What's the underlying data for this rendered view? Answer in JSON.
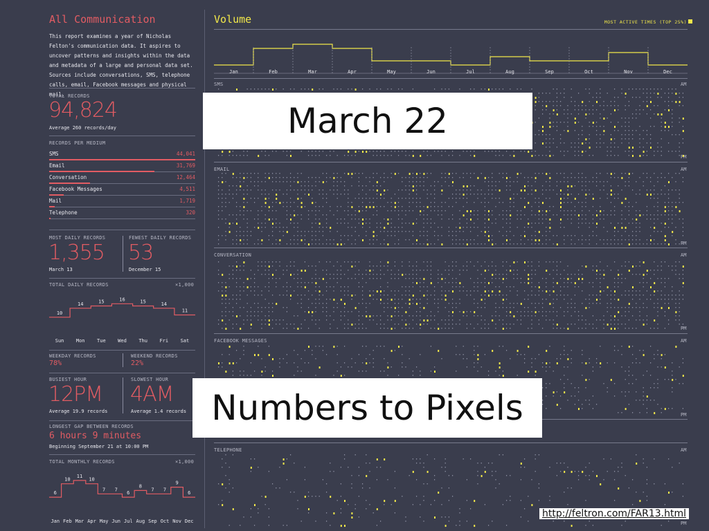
{
  "left": {
    "title": "All Communication",
    "intro": "This report examines a year of Nicholas Felton's communication data. It aspires to uncover patterns and insights within the data and metadata of a large and personal data set. Sources include conversations, SMS, telephone calls, email, Facebook messages and physical mail.",
    "total_label": "TOTAL RECORDS",
    "total_value": "94,824",
    "total_sub": "Average 260 records/day",
    "per_medium_label": "RECORDS PER MEDIUM",
    "mediums": [
      {
        "name": "SMS",
        "value": "44,041",
        "fraction": 1.0
      },
      {
        "name": "Email",
        "value": "31,769",
        "fraction": 0.72
      },
      {
        "name": "Conversation",
        "value": "12,464",
        "fraction": 0.28
      },
      {
        "name": "Facebook Messages",
        "value": "4,511",
        "fraction": 0.1
      },
      {
        "name": "Mail",
        "value": "1,719",
        "fraction": 0.04
      },
      {
        "name": "Telephone",
        "value": "320",
        "fraction": 0.01
      }
    ],
    "most_label": "MOST DAILY RECORDS",
    "most_value": "1,355",
    "most_date": "March 13",
    "fewest_label": "FEWEST DAILY RECORDS",
    "fewest_value": "53",
    "fewest_date": "December 15",
    "daily_label": "TOTAL DAILY RECORDS",
    "daily_unit": "×1,000",
    "weekday_label": "WEEKDAY RECORDS",
    "weekday_value": "78%",
    "weekend_label": "WEEKEND RECORDS",
    "weekend_value": "22%",
    "busiest_label": "BUSIEST HOUR",
    "busiest_value": "12PM",
    "busiest_sub": "Average 19.9 records",
    "slowest_label": "SLOWEST HOUR",
    "slowest_value": "4AM",
    "slowest_sub": "Average 1.4 records",
    "gap_label": "LONGEST GAP BETWEEN RECORDS",
    "gap_value": "6 hours 9 minutes",
    "gap_sub": "Beginning September 21 at 10:00 PM",
    "monthly_label": "TOTAL MONTHLY RECORDS",
    "monthly_unit": "×1,000"
  },
  "right": {
    "title": "Volume",
    "legend": "MOST ACTIVE TIMES (TOP 25%)",
    "sections": [
      "SMS",
      "EMAIL",
      "CONVERSATION",
      "FACEBOOK MESSAGES",
      "TELEPHONE"
    ],
    "am": "AM",
    "pm": "PM"
  },
  "overlays": {
    "date": "March 22",
    "caption": "Numbers to Pixels",
    "url": "http://feltron.com/FAR13.html"
  },
  "colors": {
    "background": "#3a3d4d",
    "accent_red": "#e25c63",
    "accent_yellow": "#f2e84a"
  },
  "chart_data": [
    {
      "type": "line",
      "title": "TOTAL DAILY RECORDS",
      "categories": [
        "Sun",
        "Mon",
        "Tue",
        "Wed",
        "Thu",
        "Fri",
        "Sat"
      ],
      "values": [
        10,
        14,
        15,
        16,
        15,
        14,
        11
      ],
      "unit": "×1,000"
    },
    {
      "type": "line",
      "title": "TOTAL MONTHLY RECORDS",
      "categories": [
        "Jan",
        "Feb",
        "Mar",
        "Apr",
        "May",
        "Jun",
        "Jul",
        "Aug",
        "Sep",
        "Oct",
        "Nov",
        "Dec"
      ],
      "values": [
        6,
        10,
        11,
        10,
        7,
        7,
        6,
        8,
        7,
        7,
        9,
        6
      ],
      "unit": "×1,000"
    },
    {
      "type": "area",
      "title": "Volume",
      "categories": [
        "Jan",
        "Feb",
        "Mar",
        "Apr",
        "May",
        "Jun",
        "Jul",
        "Aug",
        "Sep",
        "Oct",
        "Nov",
        "Dec"
      ],
      "values": [
        6,
        10,
        11,
        10,
        7,
        7,
        6,
        8,
        7,
        7,
        9,
        6
      ]
    }
  ]
}
